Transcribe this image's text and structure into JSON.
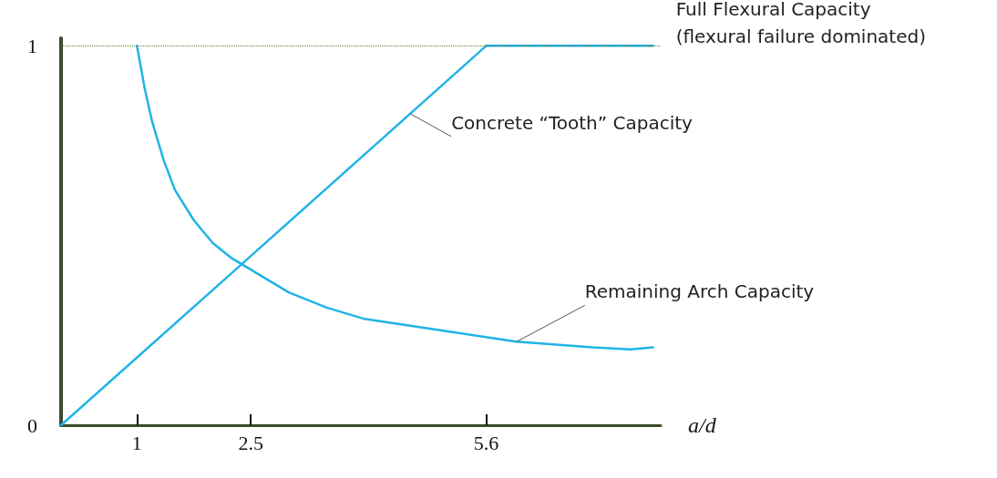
{
  "chart_data": {
    "type": "line",
    "xlabel": "a/d",
    "xlim": [
      0,
      7.9
    ],
    "xticks": [
      1,
      2.5,
      5.6
    ],
    "ylim": [
      0,
      1.02
    ],
    "yticks": [
      0,
      1
    ],
    "series": [
      {
        "name": "Concrete “Tooth” Capacity",
        "color": "#1fb4e6",
        "x": [
          0,
          2.5,
          4.6,
          5.6
        ],
        "values": [
          0,
          0.446,
          0.821,
          1
        ]
      },
      {
        "name": "Full Flexural Capacity\n(flexural failure dominated)",
        "color": "#1fb4e6",
        "x": [
          5.6,
          7.8
        ],
        "values": [
          1,
          1
        ]
      },
      {
        "name": "Remaining Arch Capacity",
        "color": "#1fb4e6",
        "x": [
          1,
          1.1,
          1.2,
          1.35,
          1.5,
          1.75,
          2,
          2.25,
          2.5,
          2.75,
          3,
          3.5,
          4,
          4.5,
          5,
          6,
          7,
          7.5,
          7.8
        ],
        "values": [
          1,
          0.89,
          0.8,
          0.7,
          0.62,
          0.54,
          0.48,
          0.44,
          0.41,
          0.38,
          0.35,
          0.31,
          0.28,
          0.265,
          0.25,
          0.22,
          0.205,
          0.2,
          0.205
        ]
      }
    ],
    "ref_lines": [
      {
        "axis": "y",
        "value": 1,
        "label": null,
        "color": "#5a7a3a",
        "line_style": "dotted"
      }
    ],
    "marker": "none",
    "grid": false,
    "legend": false
  }
}
